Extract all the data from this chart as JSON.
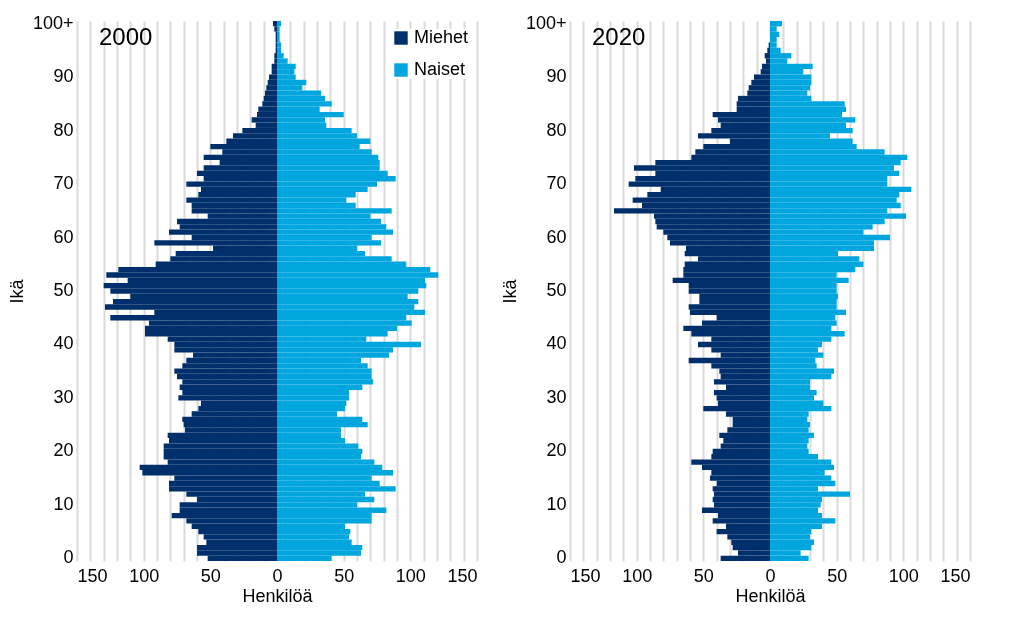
{
  "chart_data": [
    {
      "type": "bar",
      "orientation": "horizontal",
      "stacked": true,
      "title": "2000",
      "xlabel": "Henkilöä",
      "ylabel": "Ikä",
      "legend": "top right",
      "grid": "x",
      "categories": [
        "100+",
        null,
        null,
        null,
        null,
        null,
        null,
        null,
        null,
        null,
        "90",
        null,
        null,
        null,
        null,
        null,
        null,
        null,
        null,
        null,
        "80",
        null,
        null,
        null,
        null,
        null,
        null,
        null,
        null,
        null,
        "70",
        null,
        null,
        null,
        null,
        null,
        null,
        null,
        null,
        null,
        "60",
        null,
        null,
        null,
        null,
        null,
        null,
        null,
        null,
        null,
        "50",
        null,
        null,
        null,
        null,
        null,
        null,
        null,
        null,
        null,
        "40",
        null,
        null,
        null,
        null,
        null,
        null,
        null,
        null,
        null,
        "30",
        null,
        null,
        null,
        null,
        null,
        null,
        null,
        null,
        null,
        "20",
        null,
        null,
        null,
        null,
        null,
        null,
        null,
        null,
        null,
        "10",
        null,
        null,
        null,
        null,
        null,
        null,
        null,
        null,
        null,
        "0"
      ],
      "xlim": [
        -150,
        150
      ],
      "xticks": [
        {
          "value": -150,
          "label": "150"
        },
        {
          "value": -140,
          "label": null
        },
        {
          "value": -130,
          "label": null
        },
        {
          "value": -120,
          "label": null
        },
        {
          "value": -110,
          "label": null
        },
        {
          "value": -100,
          "label": "100"
        },
        {
          "value": -90,
          "label": null
        },
        {
          "value": -80,
          "label": null
        },
        {
          "value": -70,
          "label": null
        },
        {
          "value": -60,
          "label": null
        },
        {
          "value": -50,
          "label": "50"
        },
        {
          "value": -40,
          "label": null
        },
        {
          "value": -30,
          "label": null
        },
        {
          "value": -20,
          "label": null
        },
        {
          "value": -10,
          "label": null
        },
        0,
        {
          "value": 10,
          "label": null
        },
        {
          "value": 20,
          "label": null
        },
        {
          "value": 30,
          "label": null
        },
        {
          "value": 40,
          "label": null
        },
        50,
        {
          "value": 60,
          "label": null
        },
        {
          "value": 70,
          "label": null
        },
        {
          "value": 80,
          "label": null
        },
        {
          "value": 90,
          "label": null
        },
        100,
        {
          "value": 110,
          "label": null
        },
        {
          "value": 120,
          "label": null
        },
        {
          "value": 130,
          "label": null
        },
        {
          "value": 140,
          "label": null
        },
        150
      ],
      "series": [
        {
          "name": "Miehet",
          "color": "#002f6c",
          "values": [
            -3,
            -2,
            -1,
            -1,
            -1,
            -1,
            -2,
            -2,
            -4,
            -4,
            -6,
            -7,
            -8,
            -9,
            -10,
            -11,
            -14,
            -15,
            -19,
            -16,
            -26,
            -33,
            -38,
            -50,
            -41,
            -55,
            -43,
            -55,
            -60,
            -55,
            -68,
            -57,
            -59,
            -68,
            -64,
            -64,
            -52,
            -75,
            -73,
            -81,
            -64,
            -92,
            -48,
            -76,
            -80,
            -91,
            -119,
            -128,
            -112,
            -130,
            -125,
            -110,
            -123,
            -129,
            -92,
            -125,
            -96,
            -99,
            -99,
            -82,
            -77,
            -77,
            -63,
            -68,
            -71,
            -77,
            -75,
            -71,
            -73,
            -71,
            -74,
            -57,
            -59,
            -64,
            -71,
            -70,
            -69,
            -82,
            -81,
            -85,
            -85,
            -85,
            -82,
            -103,
            -101,
            -77,
            -81,
            -81,
            -68,
            -60,
            -73,
            -73,
            -79,
            -68,
            -64,
            -59,
            -55,
            -53,
            -60,
            -60,
            -52
          ]
        },
        {
          "name": "Naiset",
          "color": "#00a6dd",
          "values": [
            3,
            2,
            2,
            2,
            3,
            3,
            5,
            8,
            14,
            13,
            14,
            22,
            19,
            33,
            36,
            41,
            32,
            50,
            36,
            37,
            56,
            60,
            70,
            62,
            71,
            76,
            77,
            77,
            83,
            89,
            75,
            68,
            59,
            52,
            59,
            86,
            70,
            78,
            82,
            87,
            71,
            78,
            60,
            66,
            86,
            97,
            115,
            121,
            111,
            112,
            106,
            98,
            106,
            103,
            111,
            97,
            101,
            90,
            83,
            67,
            108,
            87,
            84,
            63,
            68,
            71,
            71,
            72,
            64,
            54,
            54,
            52,
            51,
            45,
            64,
            68,
            48,
            48,
            51,
            61,
            64,
            63,
            73,
            79,
            87,
            71,
            77,
            89,
            66,
            73,
            60,
            82,
            71,
            71,
            51,
            55,
            54,
            56,
            64,
            63,
            41
          ]
        }
      ]
    },
    {
      "type": "bar",
      "orientation": "horizontal",
      "stacked": true,
      "title": "2020",
      "xlabel": "Henkilöä",
      "ylabel": "Ikä",
      "grid": "x",
      "categories": [
        "100+",
        null,
        null,
        null,
        null,
        null,
        null,
        null,
        null,
        null,
        "90",
        null,
        null,
        null,
        null,
        null,
        null,
        null,
        null,
        null,
        "80",
        null,
        null,
        null,
        null,
        null,
        null,
        null,
        null,
        null,
        "70",
        null,
        null,
        null,
        null,
        null,
        null,
        null,
        null,
        null,
        "60",
        null,
        null,
        null,
        null,
        null,
        null,
        null,
        null,
        null,
        "50",
        null,
        null,
        null,
        null,
        null,
        null,
        null,
        null,
        null,
        "40",
        null,
        null,
        null,
        null,
        null,
        null,
        null,
        null,
        null,
        "30",
        null,
        null,
        null,
        null,
        null,
        null,
        null,
        null,
        null,
        "20",
        null,
        null,
        null,
        null,
        null,
        null,
        null,
        null,
        null,
        "10",
        null,
        null,
        null,
        null,
        null,
        null,
        null,
        null,
        null,
        "0"
      ],
      "xlim": [
        -150,
        150
      ],
      "xticks": [
        {
          "value": -150,
          "label": "150"
        },
        {
          "value": -140,
          "label": null
        },
        {
          "value": -130,
          "label": null
        },
        {
          "value": -120,
          "label": null
        },
        {
          "value": -110,
          "label": null
        },
        {
          "value": -100,
          "label": "100"
        },
        {
          "value": -90,
          "label": null
        },
        {
          "value": -80,
          "label": null
        },
        {
          "value": -70,
          "label": null
        },
        {
          "value": -60,
          "label": null
        },
        {
          "value": -50,
          "label": "50"
        },
        {
          "value": -40,
          "label": null
        },
        {
          "value": -30,
          "label": null
        },
        {
          "value": -20,
          "label": null
        },
        {
          "value": -10,
          "label": null
        },
        0,
        {
          "value": 10,
          "label": null
        },
        {
          "value": 20,
          "label": null
        },
        {
          "value": 30,
          "label": null
        },
        {
          "value": 40,
          "label": null
        },
        50,
        {
          "value": 60,
          "label": null
        },
        {
          "value": 70,
          "label": null
        },
        {
          "value": 80,
          "label": null
        },
        {
          "value": 90,
          "label": null
        },
        100,
        {
          "value": 110,
          "label": null
        },
        {
          "value": 120,
          "label": null
        },
        {
          "value": 130,
          "label": null
        },
        {
          "value": 140,
          "label": null
        },
        150
      ],
      "series": [
        {
          "color": "#002f6c",
          "values": [
            0,
            0,
            0,
            0,
            -1,
            -2,
            -4,
            -3,
            -6,
            -7,
            -12,
            -14,
            -16,
            -17,
            -24,
            -25,
            -25,
            -43,
            -39,
            -37,
            -44,
            -54,
            -30,
            -50,
            -56,
            -59,
            -86,
            -102,
            -86,
            -101,
            -106,
            -82,
            -92,
            -103,
            -96,
            -117,
            -87,
            -86,
            -85,
            -80,
            -77,
            -75,
            -63,
            -64,
            -54,
            -64,
            -65,
            -65,
            -73,
            -61,
            -61,
            -53,
            -53,
            -61,
            -60,
            -40,
            -51,
            -65,
            -59,
            -44,
            -54,
            -44,
            -37,
            -61,
            -44,
            -38,
            -37,
            -42,
            -33,
            -42,
            -40,
            -39,
            -50,
            -33,
            -28,
            -28,
            -32,
            -38,
            -35,
            -37,
            -43,
            -44,
            -59,
            -51,
            -44,
            -45,
            -40,
            -43,
            -42,
            -43,
            -42,
            -51,
            -39,
            -43,
            -33,
            -40,
            -32,
            -29,
            -28,
            -24,
            -37
          ]
        },
        {
          "color": "#00a6dd",
          "values": [
            9,
            5,
            7,
            5,
            5,
            8,
            16,
            13,
            32,
            25,
            31,
            31,
            30,
            28,
            31,
            56,
            57,
            54,
            64,
            57,
            62,
            45,
            62,
            65,
            86,
            103,
            98,
            93,
            97,
            88,
            88,
            106,
            97,
            95,
            98,
            88,
            102,
            86,
            77,
            70,
            90,
            78,
            78,
            51,
            67,
            70,
            64,
            50,
            59,
            50,
            50,
            51,
            50,
            50,
            57,
            49,
            50,
            46,
            56,
            46,
            39,
            36,
            40,
            34,
            35,
            48,
            46,
            30,
            30,
            35,
            33,
            40,
            46,
            29,
            28,
            30,
            29,
            33,
            29,
            28,
            29,
            36,
            46,
            48,
            41,
            46,
            49,
            36,
            60,
            39,
            38,
            36,
            39,
            49,
            39,
            31,
            30,
            33,
            31,
            23,
            29
          ]
        }
      ]
    }
  ]
}
